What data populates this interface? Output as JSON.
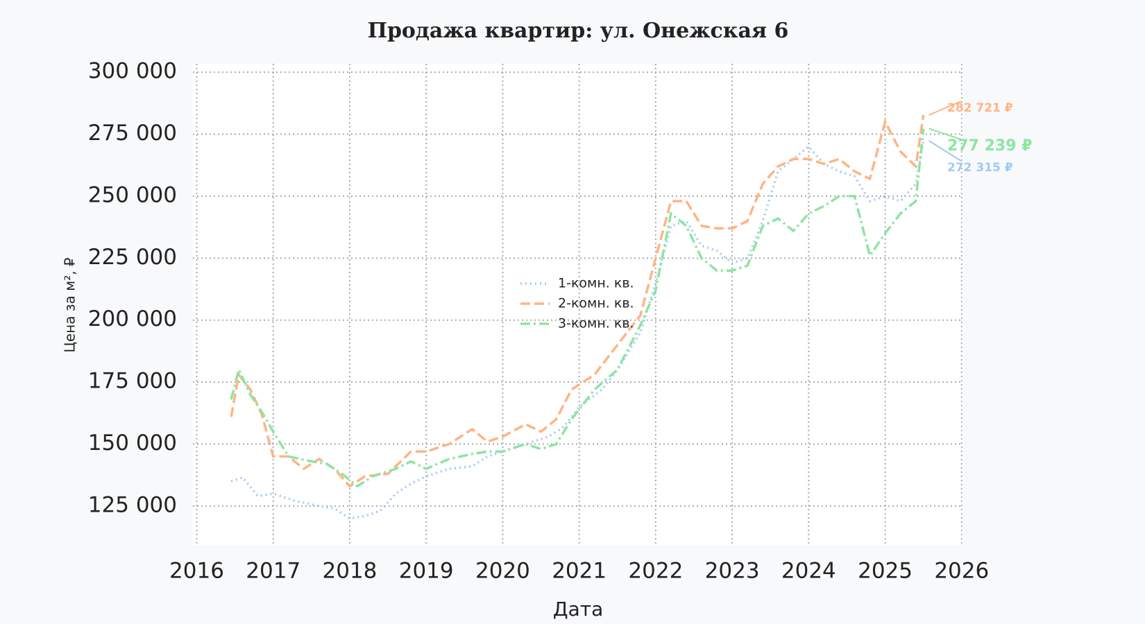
{
  "chart_data": {
    "type": "line",
    "title": "Продажа квартир: ул. Онежская 6",
    "x_label": "Дата",
    "y_label": "Цена за м², ₽",
    "xlim": [
      2015.95,
      2026.02
    ],
    "ylim": [
      109300,
      303400
    ],
    "xticks": [
      2016,
      2017,
      2018,
      2019,
      2020,
      2021,
      2022,
      2023,
      2024,
      2025,
      2026
    ],
    "yticks": [
      {
        "value": 125000,
        "label": "125 000"
      },
      {
        "value": 150000,
        "label": "150 000"
      },
      {
        "value": 175000,
        "label": "175 000"
      },
      {
        "value": 200000,
        "label": "200 000"
      },
      {
        "value": 225000,
        "label": "225 000"
      },
      {
        "value": 250000,
        "label": "250 000"
      },
      {
        "value": 275000,
        "label": "275 000"
      },
      {
        "value": 300000,
        "label": "300 000"
      }
    ],
    "grid": true,
    "legend": "center",
    "series": [
      {
        "name": "1-комн. кв.",
        "color": "#a1c9f4",
        "dash": "dotted",
        "x": [
          2016.45,
          2016.6,
          2016.8,
          2017.0,
          2017.3,
          2017.6,
          2017.8,
          2018.0,
          2018.2,
          2018.4,
          2018.6,
          2018.8,
          2019.0,
          2019.3,
          2019.6,
          2019.8,
          2020.0,
          2020.3,
          2020.6,
          2020.8,
          2021.0,
          2021.3,
          2021.5,
          2021.8,
          2022.0,
          2022.2,
          2022.4,
          2022.6,
          2022.8,
          2023.0,
          2023.2,
          2023.4,
          2023.6,
          2023.8,
          2024.0,
          2024.2,
          2024.4,
          2024.6,
          2024.8,
          2025.0,
          2025.2,
          2025.4,
          2025.5
        ],
        "values": [
          135000,
          136500,
          129000,
          130000,
          127000,
          125000,
          124000,
          120000,
          121000,
          123000,
          130000,
          134000,
          137000,
          140000,
          141000,
          145000,
          147000,
          150000,
          153000,
          157000,
          165000,
          172000,
          180000,
          195000,
          215000,
          238000,
          240000,
          230000,
          228000,
          223000,
          225000,
          240000,
          260000,
          265000,
          270000,
          263000,
          260000,
          258000,
          248000,
          250000,
          248000,
          255000,
          272315
        ],
        "end_label": {
          "value": 272315,
          "label": "272 315 ₽"
        }
      },
      {
        "name": "2-комн. кв.",
        "color": "#ffb482",
        "dash": "dashed",
        "x": [
          2016.45,
          2016.55,
          2016.7,
          2016.85,
          2017.0,
          2017.2,
          2017.4,
          2017.6,
          2017.8,
          2018.0,
          2018.2,
          2018.5,
          2018.8,
          2019.0,
          2019.3,
          2019.6,
          2019.8,
          2020.0,
          2020.3,
          2020.5,
          2020.7,
          2020.9,
          2021.2,
          2021.5,
          2021.8,
          2022.0,
          2022.2,
          2022.4,
          2022.6,
          2022.8,
          2023.0,
          2023.2,
          2023.4,
          2023.6,
          2023.8,
          2024.0,
          2024.2,
          2024.4,
          2024.6,
          2024.8,
          2025.0,
          2025.2,
          2025.4,
          2025.5
        ],
        "values": [
          161000,
          178000,
          172000,
          162000,
          145000,
          145000,
          140000,
          144000,
          140000,
          133000,
          137000,
          138000,
          147000,
          147000,
          150000,
          156000,
          151000,
          153000,
          158000,
          155000,
          160000,
          172000,
          178000,
          190000,
          202000,
          225000,
          248000,
          248000,
          238000,
          237000,
          237000,
          240000,
          255000,
          262000,
          265000,
          265000,
          263000,
          265000,
          260000,
          257000,
          280000,
          268000,
          262000,
          282721
        ],
        "end_label": {
          "value": 282721,
          "label": "282 721 ₽"
        }
      },
      {
        "name": "3-комн. кв.",
        "color": "#8de5a1",
        "dash": "dashdot",
        "x": [
          2016.45,
          2016.55,
          2016.7,
          2016.85,
          2017.0,
          2017.2,
          2017.5,
          2017.7,
          2017.9,
          2018.1,
          2018.3,
          2018.6,
          2018.8,
          2019.0,
          2019.3,
          2019.6,
          2019.8,
          2020.0,
          2020.3,
          2020.5,
          2020.7,
          2020.9,
          2021.2,
          2021.5,
          2021.8,
          2022.0,
          2022.2,
          2022.4,
          2022.6,
          2022.8,
          2023.0,
          2023.2,
          2023.4,
          2023.6,
          2023.8,
          2024.0,
          2024.2,
          2024.4,
          2024.6,
          2024.8,
          2025.0,
          2025.2,
          2025.4,
          2025.5
        ],
        "values": [
          168000,
          180000,
          170000,
          163000,
          155000,
          145000,
          143000,
          142000,
          138000,
          133000,
          137000,
          140000,
          143000,
          140000,
          144000,
          146000,
          147000,
          147000,
          150000,
          148000,
          150000,
          160000,
          172000,
          180000,
          198000,
          212000,
          243000,
          238000,
          225000,
          220000,
          220000,
          222000,
          238000,
          241000,
          236000,
          243000,
          246000,
          250000,
          250000,
          226000,
          235000,
          243000,
          248000,
          277239
        ],
        "end_label": {
          "value": 277239,
          "label": "277 239 ₽"
        }
      }
    ]
  }
}
